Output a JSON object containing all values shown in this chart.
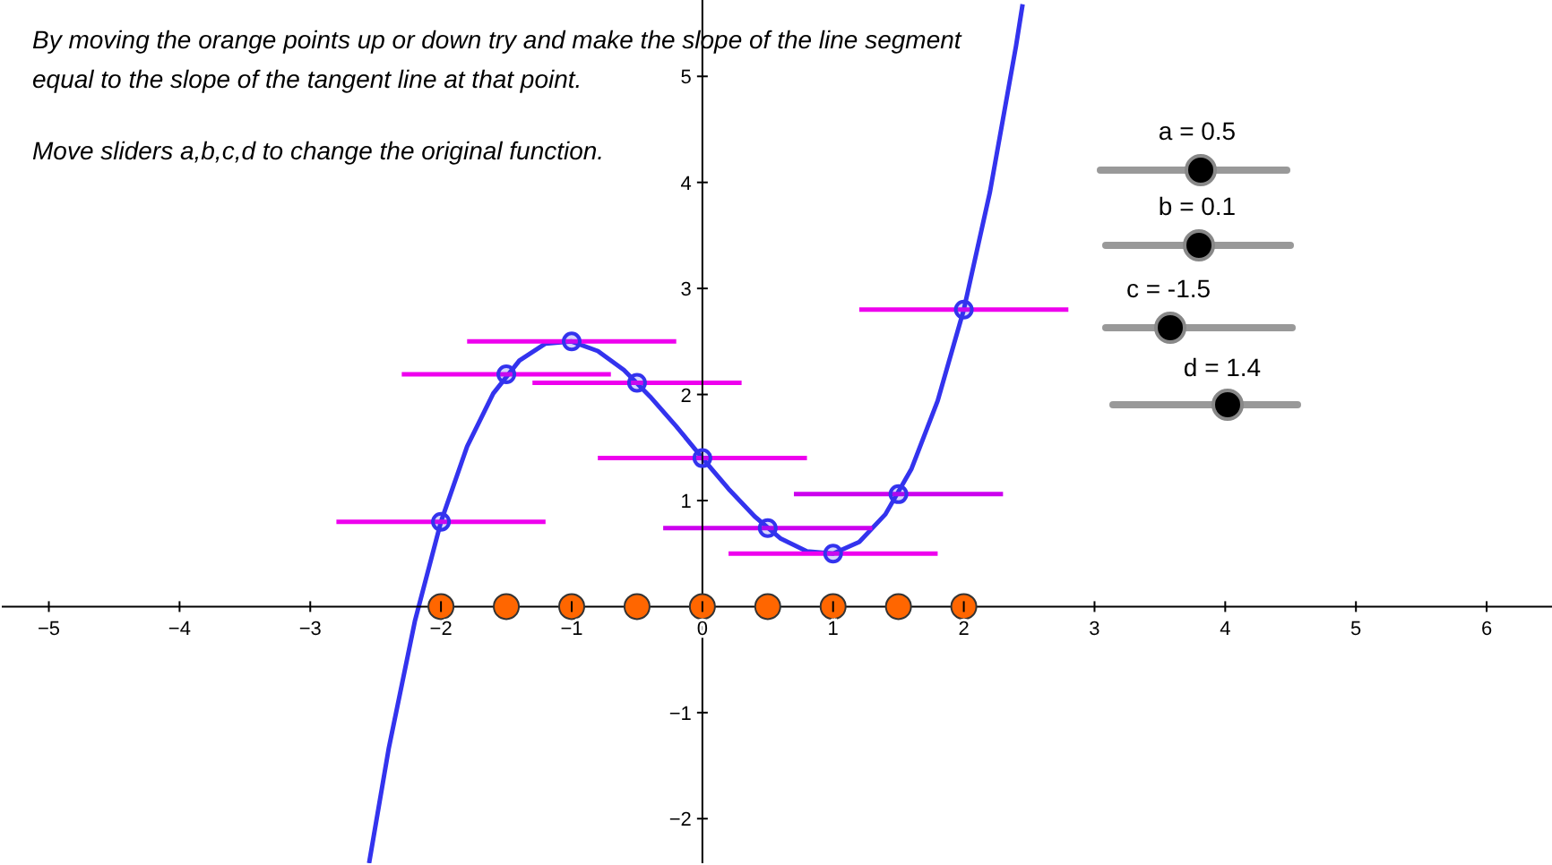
{
  "chart_data": {
    "type": "line",
    "xlim": [
      -5.36,
      6.5
    ],
    "ylim": [
      -2.42,
      5.72
    ],
    "xticks": [
      {
        "value": -5,
        "label": "−5"
      },
      {
        "value": -4,
        "label": "−4"
      },
      {
        "value": -3,
        "label": "−3"
      },
      {
        "value": -2,
        "label": "−2"
      },
      {
        "value": -1,
        "label": "−1"
      },
      0,
      1,
      2,
      3,
      4,
      5,
      6
    ],
    "yticks": [
      {
        "value": -2,
        "label": "−2"
      },
      {
        "value": -1,
        "label": "−1"
      },
      1,
      2,
      3,
      4,
      5
    ],
    "grid": false,
    "legend": false,
    "annotations": [
      "By moving the orange points up or down try and make the slope of the line segment equal to the slope of the tangent line at that point.",
      "Move sliders a,b,c,d to change the original function.",
      "a = 0.5",
      "b = 0.1",
      "c = -1.5",
      "d = 1.4"
    ],
    "series": [
      {
        "color": "#3333ee",
        "x": [
          -2.55,
          -2.4,
          -2.2,
          -2.0,
          -1.8,
          -1.6,
          -1.4,
          -1.2,
          -1.0,
          -0.8,
          -0.6,
          -0.4,
          -0.2,
          0,
          0.2,
          0.4,
          0.6,
          0.8,
          1.0,
          1.2,
          1.4,
          1.6,
          1.8,
          2.0,
          2.2,
          2.4,
          2.45
        ],
        "values": [
          -2.42,
          -1.34,
          -0.14,
          0.8,
          1.51,
          2.01,
          2.32,
          2.48,
          2.5,
          2.41,
          2.23,
          1.98,
          1.7,
          1.4,
          1.11,
          0.85,
          0.64,
          0.52,
          0.5,
          0.61,
          0.87,
          1.3,
          1.94,
          2.8,
          3.91,
          5.29,
          5.68
        ]
      },
      {
        "type": "line",
        "color": "#ee00ee",
        "x": [
          -2.8,
          -1.2
        ],
        "values": [
          0.8,
          0.8
        ]
      },
      {
        "type": "line",
        "color": "#ee00ee",
        "x": [
          -2.3,
          -0.7
        ],
        "values": [
          2.19,
          2.19
        ]
      },
      {
        "type": "line",
        "color": "#ee00ee",
        "x": [
          -1.8,
          -0.2
        ],
        "values": [
          2.5,
          2.5
        ]
      },
      {
        "type": "line",
        "color": "#ee00ee",
        "x": [
          -1.3,
          0.3
        ],
        "values": [
          2.11,
          2.11
        ]
      },
      {
        "type": "line",
        "color": "#ee00ee",
        "x": [
          -0.8,
          0.8
        ],
        "values": [
          1.4,
          1.4
        ]
      },
      {
        "type": "line",
        "color": "#cc00ee",
        "x": [
          -0.3,
          1.3
        ],
        "values": [
          0.74,
          0.74
        ]
      },
      {
        "type": "line",
        "color": "#ee00ee",
        "x": [
          0.2,
          1.8
        ],
        "values": [
          0.5,
          0.5
        ]
      },
      {
        "type": "line",
        "color": "#cc00ee",
        "x": [
          0.7,
          2.3
        ],
        "values": [
          1.06,
          1.06
        ]
      },
      {
        "type": "line",
        "color": "#ee00ee",
        "x": [
          1.2,
          2.8
        ],
        "values": [
          2.8,
          2.8
        ]
      },
      {
        "type": "scatter",
        "color": "#3333ee",
        "marker": "circle",
        "x": [
          -2,
          -1.5,
          -1,
          -0.5,
          0,
          0.5,
          1,
          1.5,
          2
        ],
        "values": [
          0.8,
          2.19,
          2.5,
          2.11,
          1.4,
          0.74,
          0.5,
          1.06,
          2.8
        ]
      },
      {
        "type": "scatter",
        "color": "#ff6600",
        "marker": "circle",
        "x": [
          -2,
          -1.5,
          -1,
          -0.5,
          0,
          0.5,
          1,
          1.5,
          2
        ],
        "values": [
          0,
          0,
          0,
          0,
          0,
          0,
          0,
          0,
          0
        ]
      }
    ]
  }
}
